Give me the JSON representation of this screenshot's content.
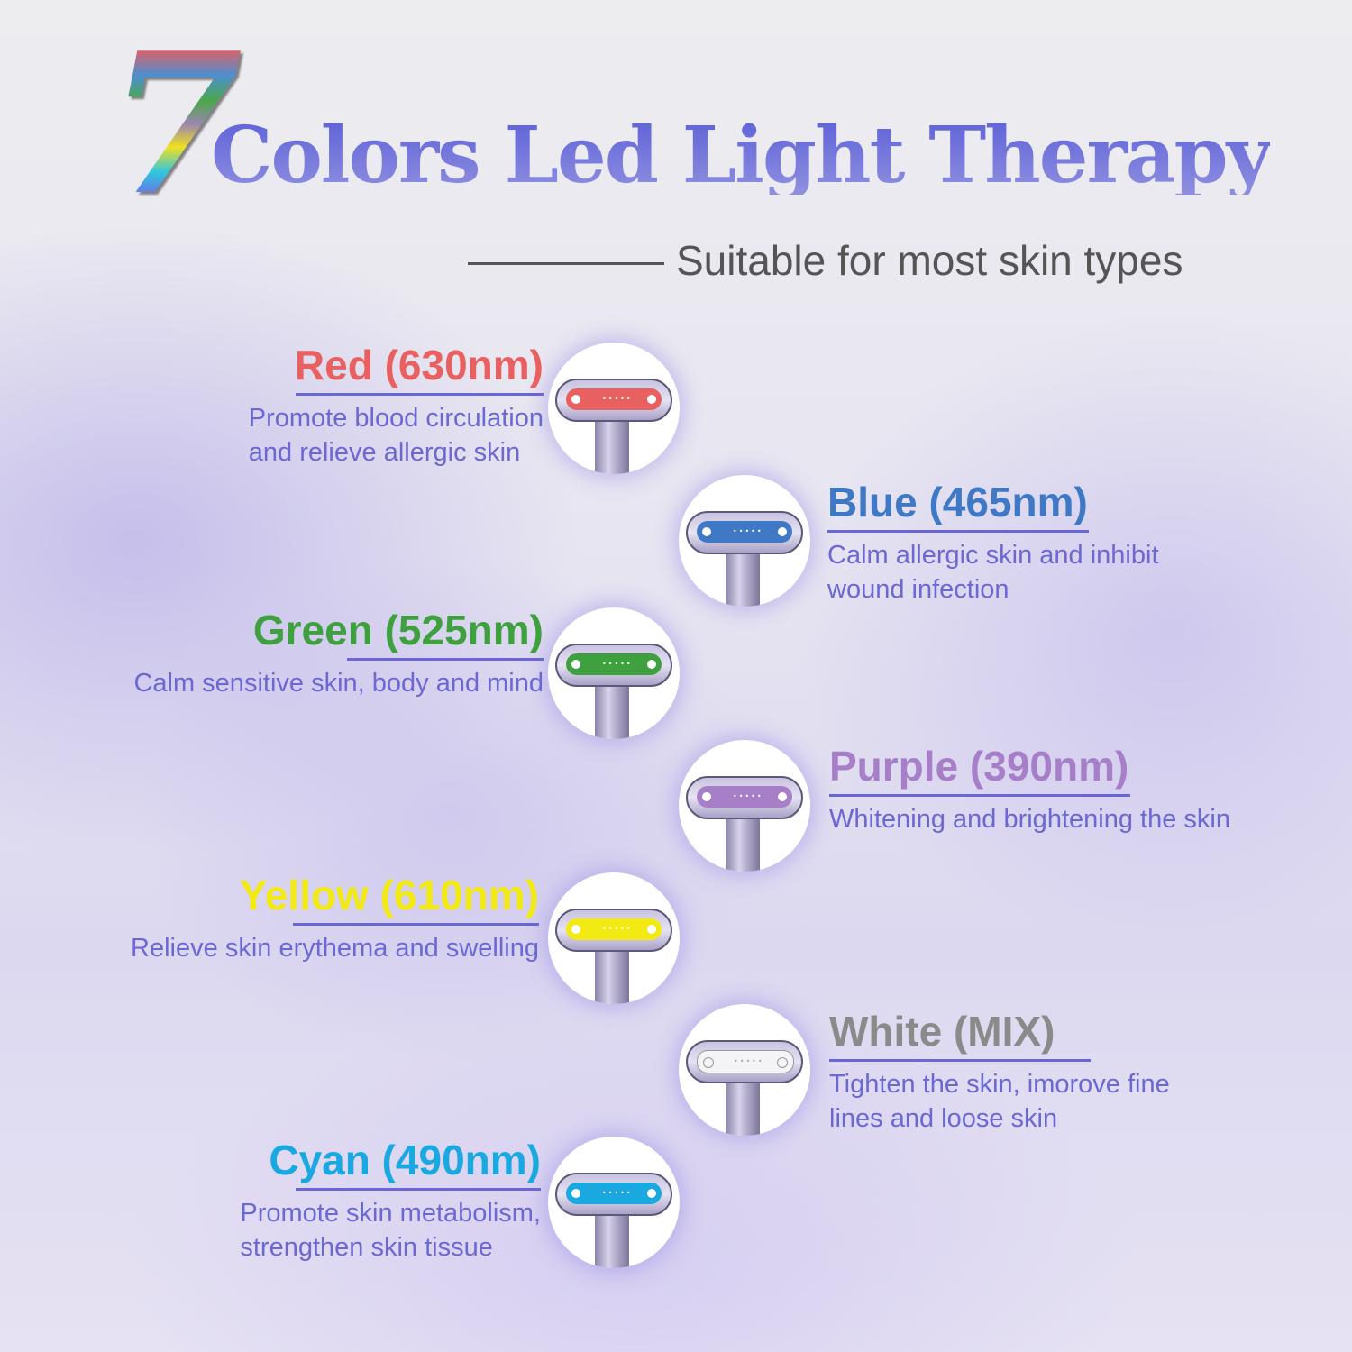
{
  "header": {
    "number": "7",
    "title": "Colors Led Light Therapy",
    "subtitle": "Suitable for most skin types"
  },
  "colors": {
    "title": "#6a6ddb",
    "description": "#6b68d2",
    "rule": "#6a66d6"
  },
  "lights": [
    {
      "name": "Red (630nm)",
      "color": "#e8605f",
      "desc": [
        "Promote blood circulation",
        "and relieve allergic skin"
      ],
      "icon": "led-wand-head-red"
    },
    {
      "name": "Blue (465nm)",
      "color": "#3f78c4",
      "desc": [
        "Calm allergic skin and inhibit",
        "wound infection"
      ],
      "icon": "led-wand-head-blue"
    },
    {
      "name": "Green (525nm)",
      "color": "#3ea03e",
      "desc": [
        "Calm sensitive skin, body and mind"
      ],
      "icon": "led-wand-head-green"
    },
    {
      "name": "Purple (390nm)",
      "color": "#a77fc8",
      "desc": [
        "Whitening and brightening the skin"
      ],
      "icon": "led-wand-head-purple"
    },
    {
      "name": "Yellow (610nm)",
      "color": "#f2ea12",
      "desc": [
        "Relieve skin erythema and swelling"
      ],
      "icon": "led-wand-head-yellow"
    },
    {
      "name": "White  (MIX)",
      "color": "#8a8a8a",
      "led_color": "#f4f4f6",
      "desc": [
        "Tighten the skin, imorove fine",
        "lines and loose skin"
      ],
      "icon": "led-wand-head-white"
    },
    {
      "name": "Cyan (490nm)",
      "color": "#1aa8e0",
      "desc": [
        "Promote skin metabolism,",
        "strengthen skin tissue"
      ],
      "icon": "led-wand-head-cyan"
    }
  ]
}
